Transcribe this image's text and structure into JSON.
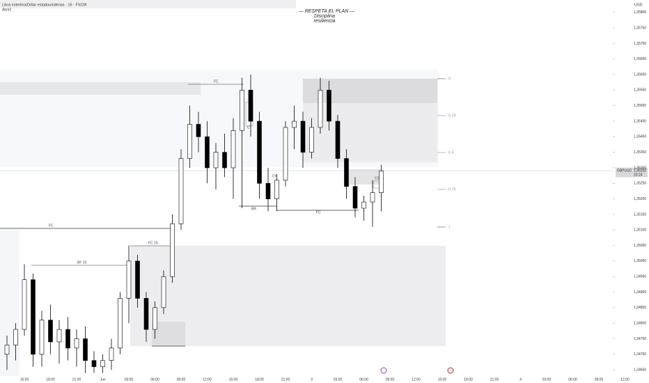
{
  "chart_data": {
    "type": "candlestick",
    "title": "Libra esterlina/Dólar estadounidense · 15 · FXCM",
    "subtitle": "Abrir2",
    "currency": "USD",
    "symbol": "GBPUSD",
    "last_price": {
      "value": 1.35292,
      "label": "1,35292"
    },
    "last_time": "10:24",
    "motto": [
      "— RESPETA  EL PLAN —",
      "Disciplina",
      "resiliencia"
    ],
    "annotations": [
      "FC",
      "FC",
      "BR",
      "FC",
      "FC 15",
      "BF 15",
      "CT",
      "CH",
      "CS",
      "0",
      "0.25",
      "0.5",
      "0.75",
      "1"
    ],
    "up_color": "#ffffff",
    "down_color": "#000000",
    "border_color": "#000000",
    "categories": [
      null,
      null,
      "15:00",
      null,
      null,
      "18:00",
      null,
      null,
      "21:00",
      null,
      null,
      "Jun",
      null,
      null,
      "03:00",
      null,
      null,
      "06:00",
      null,
      null,
      "09:00",
      null,
      null,
      "12:00",
      null,
      null,
      "15:00",
      null,
      null,
      "18:00",
      null,
      null,
      "21:00",
      null,
      null,
      "3",
      null,
      null,
      "03:00",
      null,
      null,
      "06:00",
      null,
      null,
      "09:00",
      null,
      null,
      "12:00",
      null,
      null,
      "15:00",
      null,
      null,
      "18:00",
      null,
      null,
      "21:00",
      null,
      null,
      "4",
      null,
      null,
      "03:00",
      null,
      null,
      "06:00",
      null,
      null,
      "09:00",
      null,
      null,
      "12:00"
    ],
    "open": [
      1.347,
      1.3473,
      1.3478,
      1.3494,
      1.347,
      1.3481,
      1.3474,
      1.3478,
      1.3472,
      1.3475,
      1.3468,
      1.3466,
      1.3468,
      1.3472,
      1.3488,
      1.35,
      1.3488,
      1.3478,
      1.3485,
      1.3495,
      1.3512,
      1.3533,
      1.3544,
      1.354,
      1.353,
      1.3535,
      1.353,
      1.3542,
      1.3555,
      1.3545,
      1.3525,
      1.352,
      1.3526,
      1.3543,
      1.3545,
      1.3535,
      1.3543,
      1.3555,
      1.3545,
      1.3533,
      1.3524,
      1.3517,
      1.3519,
      1.3522,
      null,
      null,
      null,
      null,
      null,
      null,
      null,
      null,
      null,
      null,
      null,
      null,
      null,
      null,
      null,
      null,
      null,
      null,
      null,
      null,
      null,
      null,
      null,
      null,
      null,
      null,
      null,
      null
    ],
    "high": [
      1.3476,
      1.348,
      1.3499,
      1.3496,
      1.3484,
      1.3486,
      1.3481,
      1.3482,
      1.3478,
      1.3479,
      1.3471,
      1.347,
      1.3475,
      1.349,
      1.3505,
      1.3502,
      1.349,
      1.3487,
      1.3497,
      1.3515,
      1.3536,
      1.355,
      1.3548,
      1.3545,
      1.3538,
      1.3541,
      1.3546,
      1.3559,
      1.356,
      1.3548,
      1.353,
      1.3528,
      1.3545,
      1.355,
      1.3548,
      1.3546,
      1.3559,
      1.3558,
      1.3547,
      1.3536,
      1.3527,
      1.3521,
      1.3526,
      1.3531,
      null,
      null,
      null,
      null,
      null,
      null,
      null,
      null,
      null,
      null,
      null,
      null,
      null,
      null,
      null,
      null,
      null,
      null,
      null,
      null,
      null,
      null,
      null,
      null,
      null,
      null,
      null,
      null
    ],
    "low": [
      1.3465,
      1.3468,
      1.3476,
      1.3466,
      1.3466,
      1.347,
      1.3467,
      1.3468,
      1.3466,
      1.3464,
      1.3464,
      1.3464,
      1.3465,
      1.347,
      1.348,
      1.3485,
      1.3474,
      1.3475,
      1.3483,
      1.3493,
      1.351,
      1.353,
      1.3535,
      1.3525,
      1.3523,
      1.3527,
      1.352,
      1.3517,
      1.354,
      1.352,
      1.3516,
      1.3516,
      1.3524,
      1.3536,
      1.353,
      1.3533,
      1.3541,
      1.3542,
      1.353,
      1.352,
      1.3514,
      1.3513,
      1.3511,
      1.3516,
      null,
      null,
      null,
      null,
      null,
      null,
      null,
      null,
      null,
      null,
      null,
      null,
      null,
      null,
      null,
      null,
      null,
      null,
      null,
      null,
      null,
      null,
      null,
      null,
      null,
      null,
      null,
      null
    ],
    "close": [
      1.3473,
      1.3478,
      1.3494,
      1.347,
      1.3481,
      1.3474,
      1.3478,
      1.3472,
      1.3475,
      1.3468,
      1.3466,
      1.3468,
      1.3472,
      1.3488,
      1.35,
      1.3488,
      1.3478,
      1.3485,
      1.3495,
      1.3512,
      1.3533,
      1.3544,
      1.354,
      1.353,
      1.3535,
      1.353,
      1.3542,
      1.3555,
      1.3545,
      1.3525,
      1.352,
      1.3526,
      1.3543,
      1.3545,
      1.3535,
      1.3543,
      1.3555,
      1.3545,
      1.3533,
      1.3524,
      1.3517,
      1.3519,
      1.3522,
      1.3529,
      null,
      null,
      null,
      null,
      null,
      null,
      null,
      null,
      null,
      null,
      null,
      null,
      null,
      null,
      null,
      null,
      null,
      null,
      null,
      null,
      null,
      null,
      null,
      null,
      null,
      null,
      null,
      null
    ],
    "ylim": [
      1.3463,
      1.3584
    ],
    "yticks": [
      {
        "value": 1.3465,
        "label": "1,34650"
      },
      {
        "value": 1.347,
        "label": "1,34700"
      },
      {
        "value": 1.3475,
        "label": "1,34750"
      },
      {
        "value": 1.348,
        "label": "1,34800"
      },
      {
        "value": 1.3485,
        "label": "1,34850"
      },
      {
        "value": 1.349,
        "label": "1,34900"
      },
      {
        "value": 1.3495,
        "label": "1,34950"
      },
      {
        "value": 1.35,
        "label": "1,35000"
      },
      {
        "value": 1.3505,
        "label": "1,35050"
      },
      {
        "value": 1.351,
        "label": "1,35100"
      },
      {
        "value": 1.3515,
        "label": "1,35150"
      },
      {
        "value": 1.352,
        "label": "1,35200"
      },
      {
        "value": 1.3525,
        "label": "1,35250"
      },
      {
        "value": 1.353,
        "label": "1,35300"
      },
      {
        "value": 1.3535,
        "label": "1,35350"
      },
      {
        "value": 1.354,
        "label": "1,35400"
      },
      {
        "value": 1.3545,
        "label": "1,35450"
      },
      {
        "value": 1.355,
        "label": "1,35500"
      },
      {
        "value": 1.3555,
        "label": "1,35550"
      },
      {
        "value": 1.356,
        "label": "1,35600"
      },
      {
        "value": 1.3565,
        "label": "1,35650"
      },
      {
        "value": 1.357,
        "label": "1,35700"
      },
      {
        "value": 1.3575,
        "label": "1,35750"
      },
      {
        "value": 1.358,
        "label": "1,35800"
      }
    ],
    "grid": false
  }
}
